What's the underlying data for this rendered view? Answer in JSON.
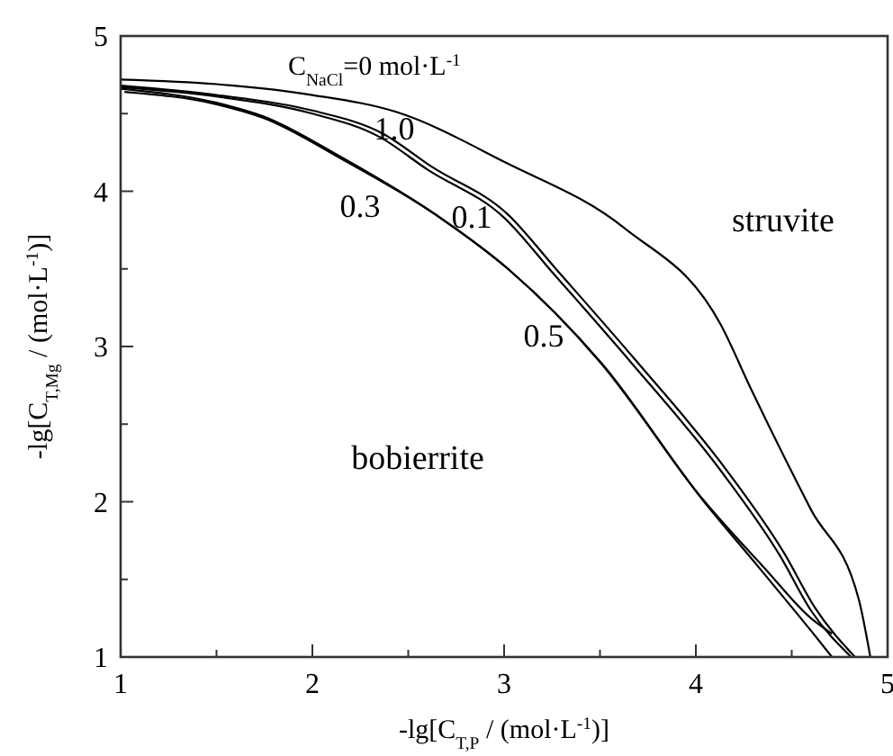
{
  "chart_data": {
    "type": "line",
    "xlabel": "-lg[C$_{T,P}$ / (mol·L$^{-1}$)]",
    "ylabel": "-lg[C$_{T,Mg}$ / (mol·L$^{-1}$)]",
    "xlim": [
      1,
      5
    ],
    "ylim": [
      1,
      5
    ],
    "xticks": [
      1,
      {
        "value": 1.5,
        "label": null
      },
      2,
      {
        "value": 2.5,
        "label": null
      },
      3,
      {
        "value": 3.5,
        "label": null
      },
      4,
      {
        "value": 4.5,
        "label": null
      },
      5
    ],
    "yticks": [
      1,
      {
        "value": 1.5,
        "label": null
      },
      2,
      {
        "value": 2.5,
        "label": null
      },
      3,
      {
        "value": 3.5,
        "label": null
      },
      4,
      {
        "value": 4.5,
        "label": null
      },
      5
    ],
    "grid": false,
    "legend": false,
    "marker": "none",
    "line_style": "solid",
    "series": [
      {
        "name": "C$_{NaCl}$=0 mol·L$^{-1}$",
        "color": "#000000",
        "x": [
          1,
          1.5,
          2.0,
          2.44,
          3.0,
          3.63,
          4.13,
          4.29,
          4.6,
          4.85,
          4.91
        ],
        "values": [
          4.72,
          4.69,
          4.62,
          4.51,
          4.19,
          3.76,
          3.14,
          2.72,
          1.95,
          1.37,
          1.0
        ]
      },
      {
        "name": "1.0",
        "color": "#000000",
        "x": [
          1,
          1.5,
          2.0,
          2.37,
          2.62,
          3.02,
          3.27,
          3.68,
          4.15,
          4.46,
          4.62,
          4.83
        ],
        "values": [
          4.68,
          4.62,
          4.52,
          4.37,
          4.16,
          3.85,
          3.5,
          2.92,
          2.22,
          1.67,
          1.32,
          1.0
        ]
      },
      {
        "name": "0.1",
        "color": "#000000",
        "x": [
          1,
          1.5,
          2.0,
          2.35,
          2.6,
          3.0,
          3.25,
          3.66,
          4.13,
          4.44,
          4.6,
          4.81
        ],
        "values": [
          4.67,
          4.61,
          4.5,
          4.35,
          4.14,
          3.83,
          3.48,
          2.9,
          2.2,
          1.65,
          1.3,
          1.0
        ]
      },
      {
        "name": "0.3",
        "color": "#000000",
        "x": [
          1,
          1.5,
          1.75,
          2.15,
          2.69,
          3.02,
          3.5,
          4.03,
          4.34,
          4.6,
          4.71
        ],
        "values": [
          4.66,
          4.57,
          4.48,
          4.22,
          3.81,
          3.5,
          2.9,
          2.02,
          1.56,
          1.17,
          1.0
        ]
      },
      {
        "name": "0.5",
        "color": "#000000",
        "x": [
          1.02,
          1.5,
          1.75,
          2.15,
          2.7,
          3.03,
          3.51,
          4.04,
          4.36,
          4.6,
          4.71
        ],
        "values": [
          4.64,
          4.56,
          4.47,
          4.21,
          3.8,
          3.49,
          2.89,
          2.01,
          1.57,
          1.25,
          1.15
        ]
      }
    ],
    "annotations": [
      "struvite",
      "bobierrite"
    ]
  }
}
